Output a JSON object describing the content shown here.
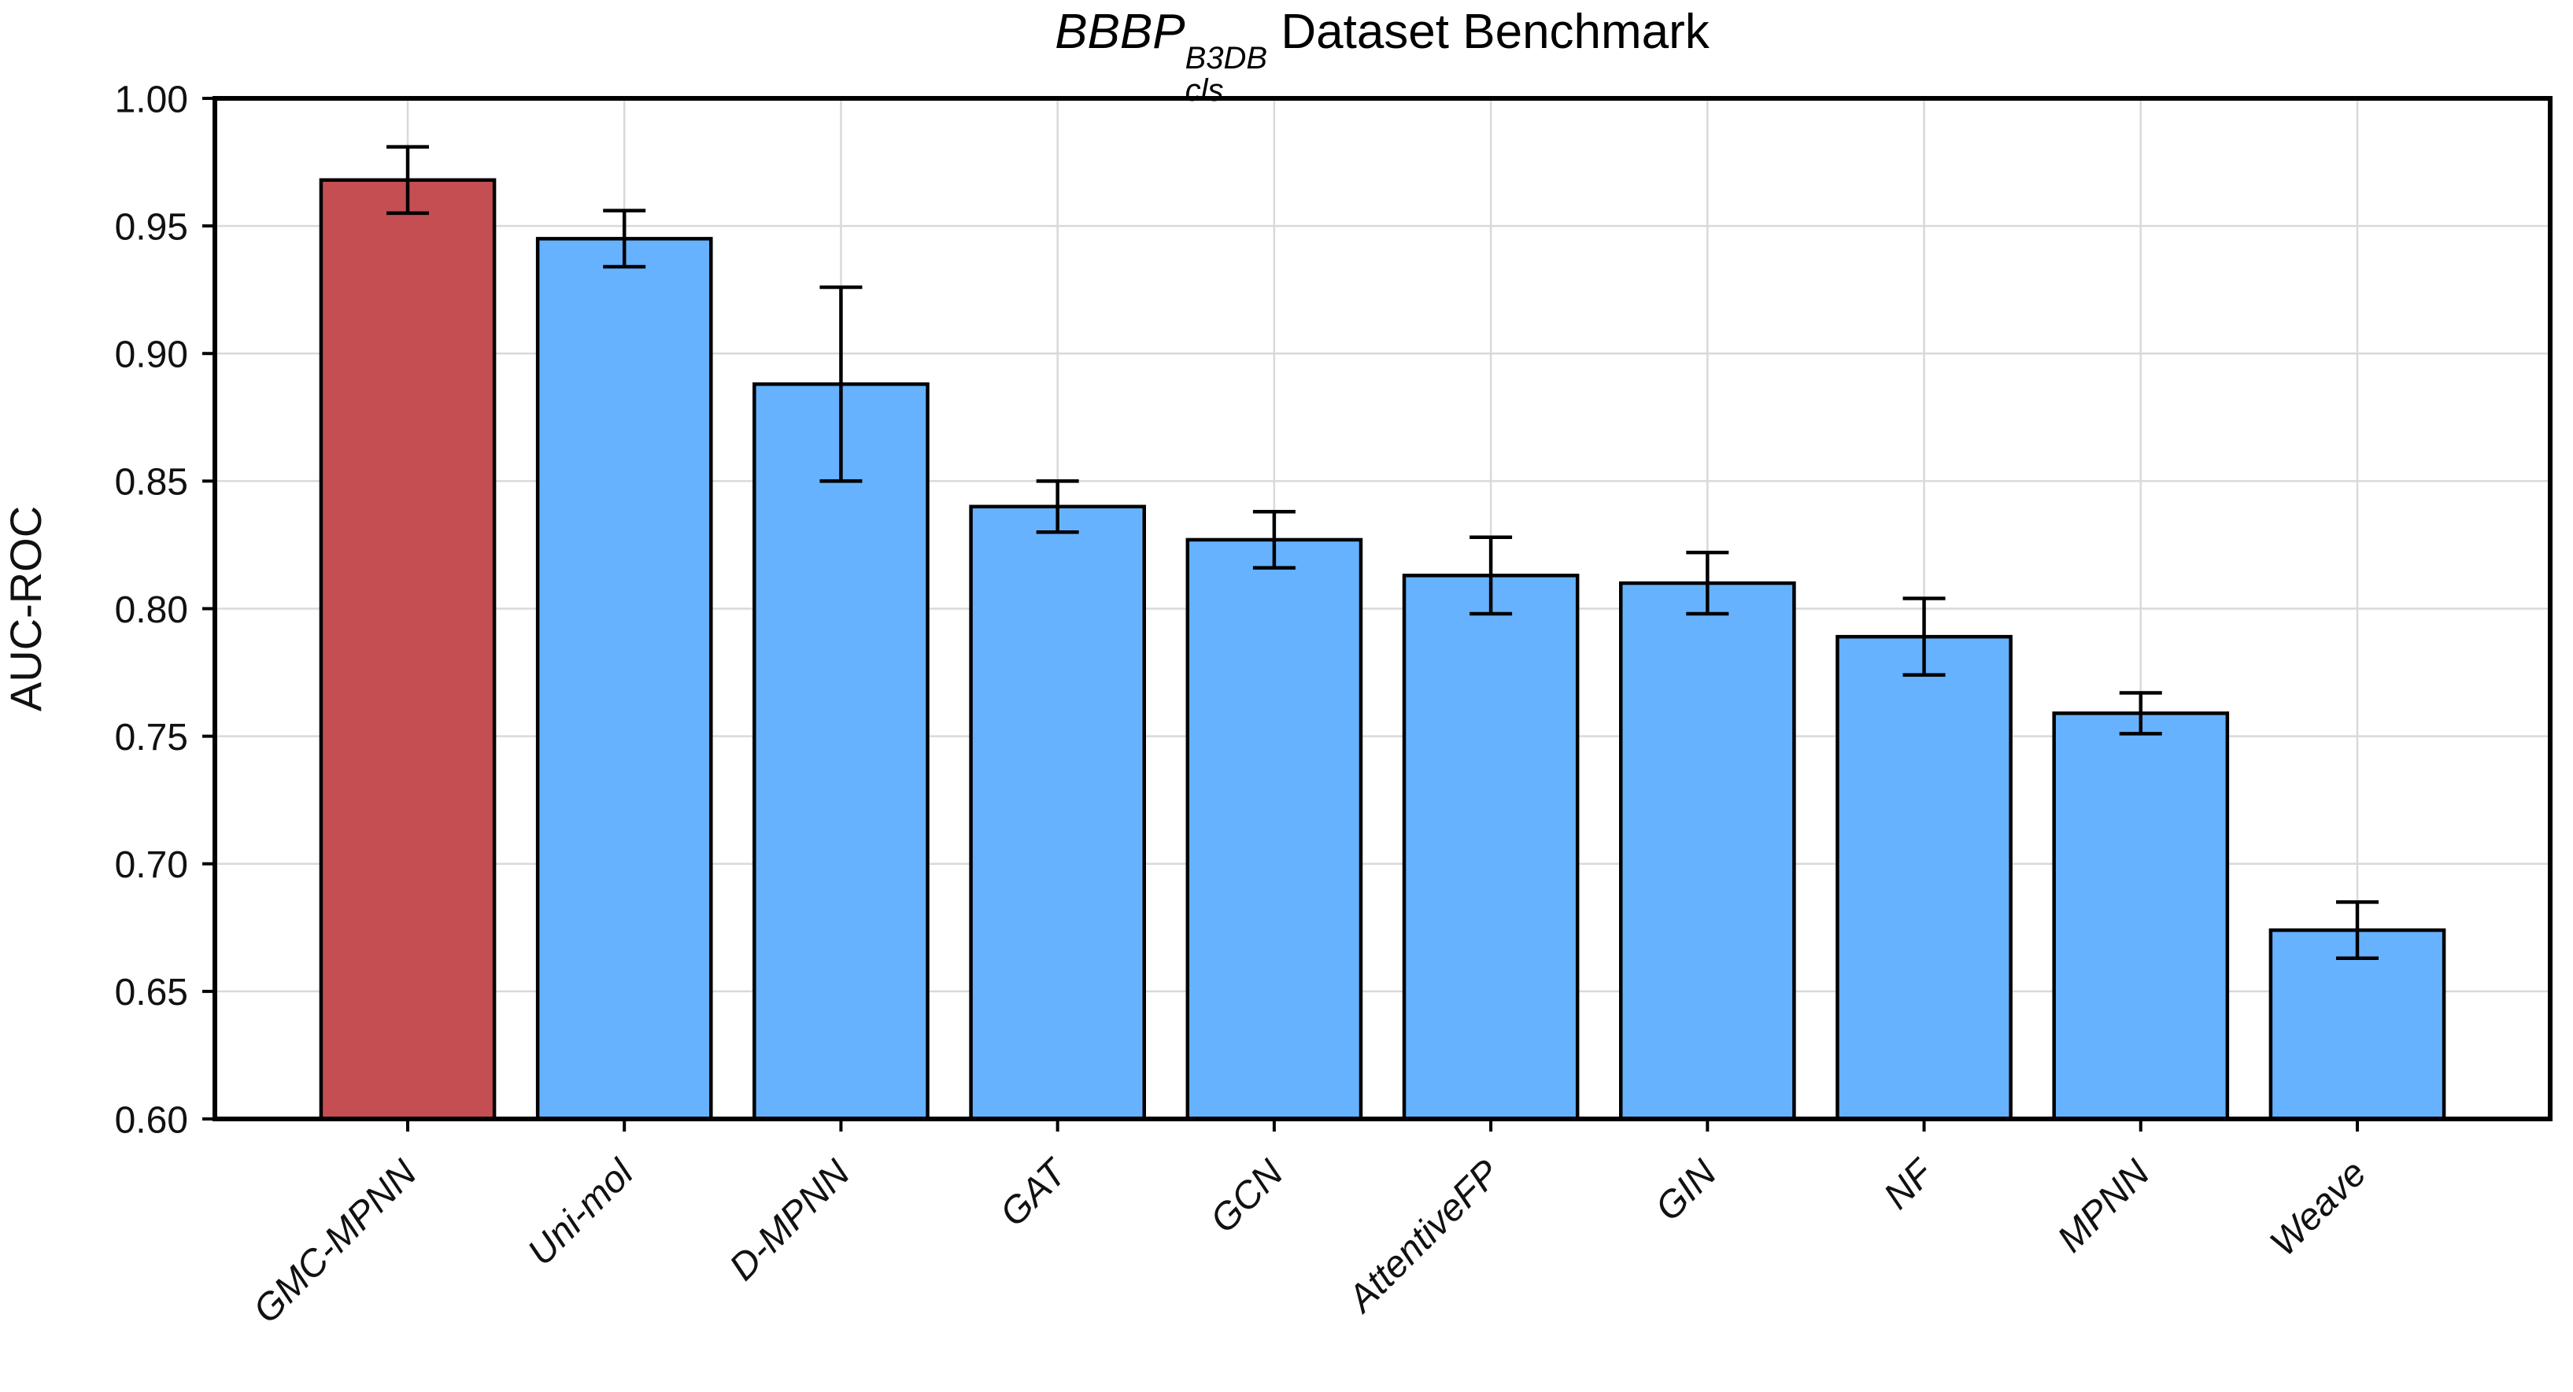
{
  "figure": {
    "background": "#ffffff",
    "title": {
      "prefix_italic": "BBBP",
      "superscript": "B3DB",
      "subscript": "cls",
      "suffix": " Dataset Benchmark"
    }
  },
  "chart_data": {
    "type": "bar",
    "title": "BBBP^{B3DB}_{cls} Dataset Benchmark",
    "xlabel": "",
    "ylabel": "AUC-ROC",
    "categories": [
      "GMC-MPNN",
      "Uni-mol",
      "D-MPNN",
      "GAT",
      "GCN",
      "AttentiveFP",
      "GIN",
      "NF",
      "MPNN",
      "Weave"
    ],
    "values": [
      0.968,
      0.945,
      0.888,
      0.84,
      0.827,
      0.813,
      0.81,
      0.789,
      0.759,
      0.674
    ],
    "errors": [
      0.013,
      0.011,
      0.038,
      0.01,
      0.011,
      0.015,
      0.012,
      0.015,
      0.008,
      0.011
    ],
    "bar_colors": [
      "#C44E52",
      "#66B2FF",
      "#66B2FF",
      "#66B2FF",
      "#66B2FF",
      "#66B2FF",
      "#66B2FF",
      "#66B2FF",
      "#66B2FF",
      "#66B2FF"
    ],
    "highlight_color": "#C44E52",
    "default_color": "#66B2FF",
    "edge_color": "#000000",
    "error_color": "#000000",
    "ylim": [
      0.6,
      1.0
    ],
    "ytick_step": 0.05,
    "ytick_labels": [
      "0.60",
      "0.65",
      "0.70",
      "0.75",
      "0.80",
      "0.85",
      "0.90",
      "0.95",
      "1.00"
    ],
    "grid": true,
    "grid_color": "#d9d9d9",
    "spine_color": "#000000",
    "legend_position": "none",
    "bar_width_fraction": 0.8
  }
}
